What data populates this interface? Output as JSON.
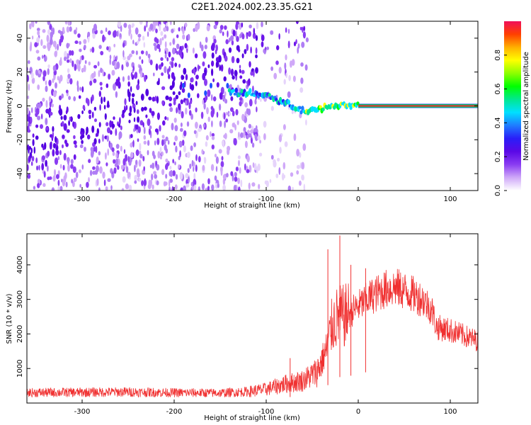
{
  "title": "C2E1.2024.002.23.35.G21",
  "chart_data": [
    {
      "type": "heatmap",
      "xlabel": "Height of straight line (km)",
      "ylabel": "Frequency (Hz)",
      "xlim": [
        -360,
        130
      ],
      "ylim": [
        -50,
        50
      ],
      "x_ticks": [
        -300,
        -200,
        -100,
        0,
        100
      ],
      "y_ticks": [
        -40,
        -20,
        0,
        20,
        40
      ],
      "colorbar": {
        "label": "Normalized spectral amplitude",
        "range": [
          0,
          1
        ],
        "ticks": [
          0.0,
          0.2,
          0.4,
          0.6,
          0.8
        ],
        "colors": [
          "#ffffff",
          "#cfa8f8",
          "#8a3cf2",
          "#5a08e6",
          "#2a1ef8",
          "#1f7cff",
          "#00e0ff",
          "#00e890",
          "#00ff00",
          "#8cff00",
          "#ffff00",
          "#ffb000",
          "#ff4000",
          "#f0105a"
        ]
      },
      "signal_track": [
        {
          "x": -140,
          "f": 8
        },
        {
          "x": -120,
          "f": 8
        },
        {
          "x": -100,
          "f": 6
        },
        {
          "x": -80,
          "f": 2
        },
        {
          "x": -60,
          "f": -3
        },
        {
          "x": -45,
          "f": -3
        },
        {
          "x": -35,
          "f": 0
        },
        {
          "x": -20,
          "f": 0
        },
        {
          "x": -10,
          "f": 0
        },
        {
          "x": 0,
          "f": 0
        }
      ],
      "carrier": {
        "x_start": 0,
        "x_end": 130,
        "f": 0
      }
    },
    {
      "type": "line",
      "xlabel": "Height of straight line (km)",
      "ylabel": "SNR (10 * v/v)",
      "xlim": [
        -360,
        130
      ],
      "ylim": [
        0,
        4900
      ],
      "x_ticks": [
        -300,
        -200,
        -100,
        0,
        100
      ],
      "y_ticks": [
        1000,
        2000,
        3000,
        4000
      ],
      "color": "#f03030",
      "envelope": [
        {
          "x": -360,
          "y": 300
        },
        {
          "x": -300,
          "y": 310
        },
        {
          "x": -250,
          "y": 320
        },
        {
          "x": -200,
          "y": 300
        },
        {
          "x": -150,
          "y": 290
        },
        {
          "x": -120,
          "y": 330
        },
        {
          "x": -100,
          "y": 400
        },
        {
          "x": -80,
          "y": 550
        },
        {
          "x": -60,
          "y": 650
        },
        {
          "x": -45,
          "y": 900
        },
        {
          "x": -35,
          "y": 1500
        },
        {
          "x": -28,
          "y": 2300
        },
        {
          "x": -22,
          "y": 2500
        },
        {
          "x": -15,
          "y": 2500
        },
        {
          "x": -5,
          "y": 2700
        },
        {
          "x": 5,
          "y": 2900
        },
        {
          "x": 15,
          "y": 3100
        },
        {
          "x": 30,
          "y": 3300
        },
        {
          "x": 40,
          "y": 3350
        },
        {
          "x": 55,
          "y": 3200
        },
        {
          "x": 70,
          "y": 3000
        },
        {
          "x": 80,
          "y": 2700
        },
        {
          "x": 85,
          "y": 2200
        },
        {
          "x": 100,
          "y": 2100
        },
        {
          "x": 115,
          "y": 1950
        },
        {
          "x": 130,
          "y": 1800
        }
      ],
      "spikes": [
        {
          "x": -74,
          "y": 1300
        },
        {
          "x": -33,
          "y": 4450
        },
        {
          "x": -20,
          "y": 4850
        },
        {
          "x": -8,
          "y": 4000
        },
        {
          "x": 8,
          "y": 3900
        }
      ]
    }
  ]
}
